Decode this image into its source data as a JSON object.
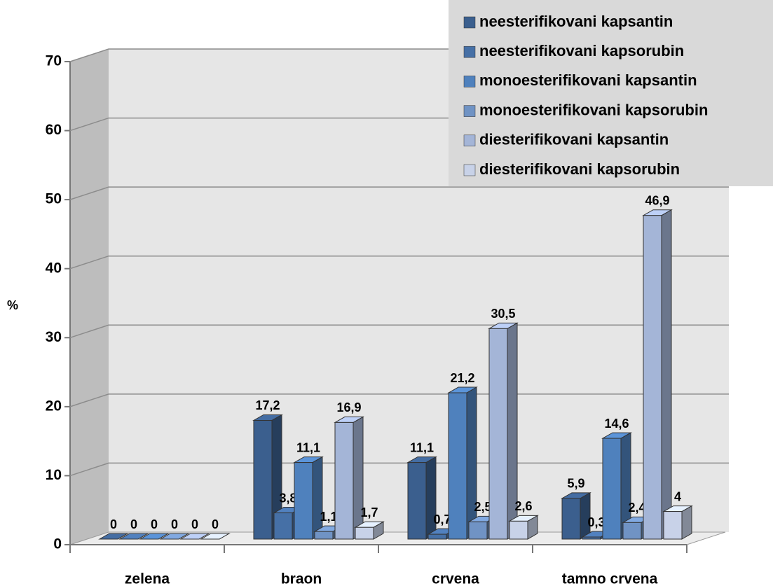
{
  "chart_data": {
    "type": "bar3d",
    "categories": [
      "zelena",
      "braon",
      "crvena",
      "tamno crvena"
    ],
    "y_label": "%",
    "ylim": [
      0,
      70
    ],
    "yticks": [
      0,
      10,
      20,
      30,
      40,
      50,
      60,
      70
    ],
    "grid": true,
    "legend": "top-right",
    "series": [
      {
        "name": "neesterifikovani kapsantin",
        "color": "#3b5f8e",
        "values": [
          0,
          17.2,
          11.1,
          5.9
        ],
        "value_labels": [
          "0",
          "17,2",
          "11,1",
          "5,9"
        ]
      },
      {
        "name": "neesterifikovani kapsorubin",
        "color": "#4670a6",
        "values": [
          0,
          3.8,
          0.7,
          0.3
        ],
        "value_labels": [
          "0",
          "3,8",
          "0,7",
          "0,3"
        ]
      },
      {
        "name": "monoesterifikovani kapsantin",
        "color": "#4f81bd",
        "values": [
          0,
          11.1,
          21.2,
          14.6
        ],
        "value_labels": [
          "0",
          "11,1",
          "21,2",
          "14,6"
        ]
      },
      {
        "name": "monoesterifikovani kapsorubin",
        "color": "#7093c4",
        "values": [
          0,
          1.1,
          2.5,
          2.4
        ],
        "value_labels": [
          "0",
          "1,1",
          "2,5",
          "2,4"
        ]
      },
      {
        "name": "diesterifikovani kapsantin",
        "color": "#a4b5d7",
        "values": [
          0,
          16.9,
          30.5,
          46.9
        ],
        "value_labels": [
          "0",
          "16,9",
          "30,5",
          "46,9"
        ]
      },
      {
        "name": "diesterifikovani kapsorubin",
        "color": "#c8d2e8",
        "values": [
          0,
          1.7,
          2.6,
          4
        ],
        "value_labels": [
          "0",
          "1,7",
          "2,6",
          "4"
        ]
      }
    ]
  }
}
